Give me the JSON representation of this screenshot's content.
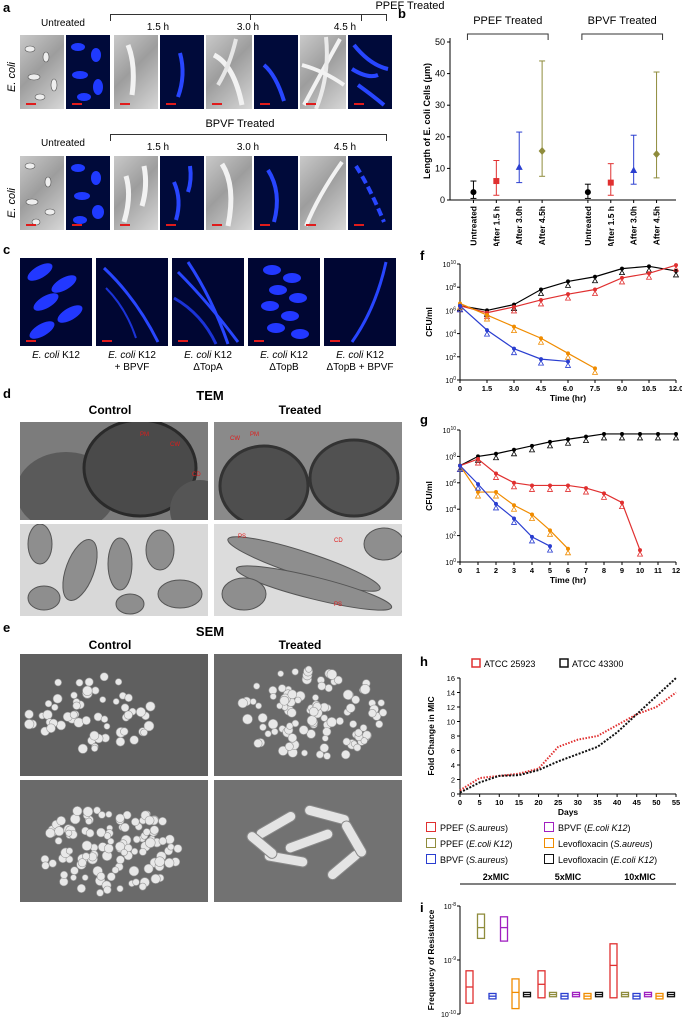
{
  "panel_a": {
    "label": "a",
    "ppef": {
      "title": "PPEF Treated",
      "untreated": "Untreated",
      "times": [
        "1.5 h",
        "3.0 h",
        "4.5 h"
      ]
    },
    "bpvf": {
      "title": "BPVF Treated",
      "untreated": "Untreated",
      "times": [
        "1.5 h",
        "3.0 h",
        "4.5 h"
      ]
    },
    "row_label": "E. coli"
  },
  "panel_b": {
    "label": "b",
    "chart_data": {
      "type": "scatter",
      "groups": [
        "PPEF Treated",
        "BPVF Treated"
      ],
      "categories": [
        "Untreated",
        "After 1.5 h",
        "After 3.0h",
        "After 4.5h",
        "Untreated",
        "After 1.5 h",
        "After 3.0h",
        "After 4.5h"
      ],
      "ylabel": "Length of E. coli Cells (μm)",
      "ylim": [
        0,
        50
      ],
      "yticks": [
        "0",
        "10",
        "20",
        "30",
        "40",
        "50"
      ],
      "series": [
        {
          "group": "PPEF Treated",
          "mean": [
            2.5,
            6,
            10.5,
            15.5
          ],
          "min": [
            0.5,
            1.5,
            5.5,
            7.5
          ],
          "max": [
            6,
            12.5,
            21.5,
            44
          ],
          "colors": [
            "#000000",
            "#e03030",
            "#2a3ed0",
            "#8f8c3c"
          ],
          "markers": [
            "circle",
            "square",
            "triangle",
            "diamond"
          ]
        },
        {
          "group": "BPVF Treated",
          "mean": [
            2.5,
            5.5,
            9.5,
            14.5
          ],
          "min": [
            0.5,
            1.5,
            5,
            7
          ],
          "max": [
            5,
            11.5,
            20.5,
            40.5
          ],
          "colors": [
            "#000000",
            "#e03030",
            "#2a3ed0",
            "#8f8c3c"
          ],
          "markers": [
            "circle",
            "square",
            "triangle",
            "diamond"
          ]
        }
      ]
    }
  },
  "panel_c": {
    "label": "c",
    "captions": [
      {
        "italic": "E. coli",
        "rest": " K12",
        "line2": ""
      },
      {
        "italic": "E. coli",
        "rest": " K12",
        "line2": "+ BPVF"
      },
      {
        "italic": "E. coli",
        "rest": " K12",
        "line2": "ΔTopA"
      },
      {
        "italic": "E. coli",
        "rest": " K12",
        "line2": "ΔTopB"
      },
      {
        "italic": "E. coli",
        "rest": " K12",
        "line2": "ΔTopB + BPVF"
      }
    ]
  },
  "panel_d": {
    "label": "d",
    "title": "TEM",
    "control": "Control",
    "treated": "Treated",
    "annotations": {
      "pm": "PM",
      "cw": "CW",
      "cd": "CD",
      "ps": "PS"
    }
  },
  "panel_e": {
    "label": "e",
    "title": "SEM",
    "control": "Control",
    "treated": "Treated"
  },
  "panel_f": {
    "label": "f",
    "chart_data": {
      "type": "line",
      "xlabel": "Time (hr)",
      "ylabel": "CFU/ml",
      "yscale": "log",
      "xticks": [
        "0",
        "1.5",
        "3.0",
        "4.5",
        "6.0",
        "7.5",
        "9.0",
        "10.5",
        "12.0"
      ],
      "yticks": [
        "10^0",
        "10^2",
        "10^4",
        "10^6",
        "10^8",
        "10^10"
      ],
      "series": [
        {
          "color": "#000000",
          "x": [
            0,
            1.5,
            3,
            4.5,
            6,
            7.5,
            9,
            10.5,
            12
          ],
          "y": [
            6.4,
            6.0,
            6.5,
            7.8,
            8.5,
            8.9,
            9.6,
            9.8,
            9.4
          ]
        },
        {
          "color": "#e03030",
          "x": [
            0,
            1.5,
            3,
            4.5,
            6,
            7.5,
            9,
            10.5,
            12
          ],
          "y": [
            6.4,
            5.8,
            6.3,
            6.9,
            7.4,
            7.8,
            8.8,
            9.2,
            9.9
          ]
        },
        {
          "color": "#f08c00",
          "x": [
            0,
            1.5,
            3,
            4.5,
            6,
            7.5
          ],
          "y": [
            6.6,
            5.6,
            4.6,
            3.6,
            2.3,
            1.0
          ]
        },
        {
          "color": "#2a3ed0",
          "x": [
            0,
            1.5,
            3,
            4.5,
            6
          ],
          "y": [
            6.4,
            4.3,
            2.7,
            1.8,
            1.6
          ]
        }
      ]
    }
  },
  "panel_g": {
    "label": "g",
    "chart_data": {
      "type": "line",
      "xlabel": "Time (hr)",
      "ylabel": "CFU/ml",
      "yscale": "log",
      "xticks": [
        "0",
        "1",
        "2",
        "3",
        "4",
        "5",
        "6",
        "7",
        "8",
        "9",
        "10",
        "11",
        "12"
      ],
      "yticks": [
        "10^0",
        "10^2",
        "10^4",
        "10^6",
        "10^8",
        "10^10"
      ],
      "series": [
        {
          "color": "#000000",
          "x": [
            0,
            1,
            2,
            3,
            4,
            5,
            6,
            7,
            8,
            9,
            10,
            11,
            12
          ],
          "y": [
            7.3,
            8.0,
            8.2,
            8.5,
            8.8,
            9.1,
            9.3,
            9.5,
            9.7,
            9.7,
            9.7,
            9.7,
            9.7
          ]
        },
        {
          "color": "#e03030",
          "x": [
            0,
            1,
            2,
            3,
            4,
            5,
            6,
            7,
            8,
            9,
            10
          ],
          "y": [
            7.3,
            7.8,
            6.7,
            6.0,
            5.8,
            5.8,
            5.8,
            5.6,
            5.2,
            4.5,
            0.9
          ]
        },
        {
          "color": "#f08c00",
          "x": [
            0,
            1,
            2,
            3,
            4,
            5,
            6
          ],
          "y": [
            7.3,
            5.3,
            5.3,
            4.3,
            3.6,
            2.4,
            1.0
          ]
        },
        {
          "color": "#2a3ed0",
          "x": [
            0,
            1,
            2,
            3,
            4,
            5
          ],
          "y": [
            7.3,
            5.9,
            4.4,
            3.3,
            1.9,
            1.2
          ]
        }
      ]
    }
  },
  "panel_h": {
    "label": "h",
    "chart_data": {
      "type": "line",
      "xlabel": "Days",
      "ylabel": "Fold Change in MIC",
      "ylim": [
        0,
        16
      ],
      "xticks": [
        "0",
        "5",
        "10",
        "15",
        "20",
        "25",
        "30",
        "35",
        "40",
        "45",
        "50",
        "55"
      ],
      "yticks": [
        "0",
        "2",
        "4",
        "6",
        "8",
        "10",
        "12",
        "14",
        "16"
      ],
      "legend": [
        "ATCC 25923",
        "ATCC 43300"
      ],
      "series": [
        {
          "name": "ATCC 25923",
          "color": "#e03030",
          "x": [
            0,
            5,
            10,
            15,
            20,
            25,
            30,
            35,
            40,
            45,
            50,
            55
          ],
          "y": [
            0.5,
            2.2,
            2.5,
            2.8,
            3.5,
            6.5,
            7.5,
            8.0,
            9.5,
            11.0,
            12.0,
            14.0
          ]
        },
        {
          "name": "ATCC 43300",
          "color": "#111111",
          "x": [
            0,
            5,
            10,
            15,
            20,
            25,
            30,
            35,
            40,
            45,
            50,
            55
          ],
          "y": [
            0.2,
            1.6,
            2.5,
            2.6,
            3.3,
            4.5,
            5.5,
            6.5,
            8.5,
            11.0,
            13.5,
            16.0
          ]
        }
      ]
    }
  },
  "panel_i": {
    "label": "i",
    "legend": [
      {
        "drug": "PPEF",
        "strain": "S.aureus",
        "color": "#e03030"
      },
      {
        "drug": "BPVF",
        "strain": "E.coli K12",
        "color": "#a020c0"
      },
      {
        "drug": "PPEF",
        "strain": "E.coli K12",
        "color": "#8f8c3c"
      },
      {
        "drug": "Levofloxacin",
        "strain": "S.aureus",
        "color": "#f08c00"
      },
      {
        "drug": "BPVF",
        "strain": "S.aureus",
        "color": "#2a3ed0"
      },
      {
        "drug": "Levofloxacin",
        "strain": "E.coli K12",
        "color": "#111111"
      }
    ],
    "chart_data": {
      "type": "box",
      "groups": [
        "2xMIC",
        "5xMIC",
        "10xMIC"
      ],
      "ylabel": "Frequency of Resistance",
      "yscale": "log",
      "yticks": [
        "10^-8",
        "10^-9",
        "10^-10"
      ],
      "boxes": [
        {
          "group": "2xMIC",
          "color": "#e03030",
          "low": -9.8,
          "high": -9.2,
          "mid": -9.5
        },
        {
          "group": "2xMIC",
          "color": "#8f8c3c",
          "low": -8.6,
          "high": -8.15,
          "mid": -8.4
        },
        {
          "group": "2xMIC",
          "color": "#2a3ed0",
          "low": -9.72,
          "high": -9.62,
          "mid": -9.67
        },
        {
          "group": "2xMIC",
          "color": "#a020c0",
          "low": -8.65,
          "high": -8.2,
          "mid": -8.4
        },
        {
          "group": "2xMIC",
          "color": "#f08c00",
          "low": -9.9,
          "high": -9.35,
          "mid": -9.6
        },
        {
          "group": "2xMIC",
          "color": "#111111",
          "low": -9.68,
          "high": -9.6,
          "mid": -9.64
        },
        {
          "group": "5xMIC",
          "color": "#e03030",
          "low": -9.7,
          "high": -9.2,
          "mid": -9.45
        },
        {
          "group": "5xMIC",
          "color": "#8f8c3c",
          "low": -9.68,
          "high": -9.6,
          "mid": -9.64
        },
        {
          "group": "5xMIC",
          "color": "#2a3ed0",
          "low": -9.72,
          "high": -9.62,
          "mid": -9.67
        },
        {
          "group": "5xMIC",
          "color": "#a020c0",
          "low": -9.68,
          "high": -9.6,
          "mid": -9.64
        },
        {
          "group": "5xMIC",
          "color": "#f08c00",
          "low": -9.72,
          "high": -9.62,
          "mid": -9.67
        },
        {
          "group": "5xMIC",
          "color": "#111111",
          "low": -9.68,
          "high": -9.6,
          "mid": -9.64
        },
        {
          "group": "10xMIC",
          "color": "#e03030",
          "low": -9.7,
          "high": -8.7,
          "mid": -9.1
        },
        {
          "group": "10xMIC",
          "color": "#8f8c3c",
          "low": -9.68,
          "high": -9.6,
          "mid": -9.64
        },
        {
          "group": "10xMIC",
          "color": "#2a3ed0",
          "low": -9.72,
          "high": -9.62,
          "mid": -9.67
        },
        {
          "group": "10xMIC",
          "color": "#a020c0",
          "low": -9.68,
          "high": -9.6,
          "mid": -9.64
        },
        {
          "group": "10xMIC",
          "color": "#f08c00",
          "low": -9.72,
          "high": -9.62,
          "mid": -9.67
        },
        {
          "group": "10xMIC",
          "color": "#111111",
          "low": -9.68,
          "high": -9.6,
          "mid": -9.64
        }
      ]
    }
  }
}
